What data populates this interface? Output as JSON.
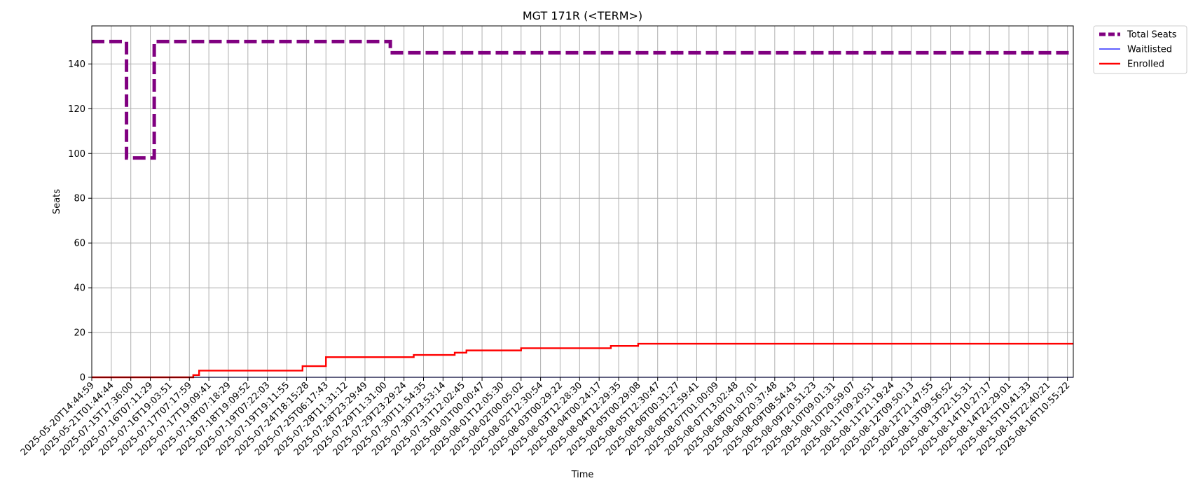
{
  "chart_data": {
    "type": "line",
    "title": "MGT 171R (<TERM>)",
    "xlabel": "Time",
    "ylabel": "Seats",
    "ylim": [
      0,
      157
    ],
    "yticks": [
      0,
      20,
      40,
      60,
      80,
      100,
      120,
      140
    ],
    "grid": true,
    "legend_position": "outside-top-right",
    "categories": [
      "2025-05-20T14:44:59",
      "2025-05-21T01:44:44",
      "2025-07-15T17:36:00",
      "2025-07-16T07:11:29",
      "2025-07-16T19:03:51",
      "2025-07-17T07:17:59",
      "2025-07-17T19:09:41",
      "2025-07-18T07:18:29",
      "2025-07-18T19:09:52",
      "2025-07-19T07:22:03",
      "2025-07-19T19:11:55",
      "2025-07-24T18:15:28",
      "2025-07-25T06:17:43",
      "2025-07-28T11:31:12",
      "2025-07-28T23:29:49",
      "2025-07-29T11:31:00",
      "2025-07-29T23:29:24",
      "2025-07-30T11:54:35",
      "2025-07-30T23:53:14",
      "2025-07-31T12:02:45",
      "2025-08-01T00:00:47",
      "2025-08-01T12:05:30",
      "2025-08-02T00:05:02",
      "2025-08-02T12:30:54",
      "2025-08-03T00:29:22",
      "2025-08-03T12:28:30",
      "2025-08-04T00:24:17",
      "2025-08-04T12:29:35",
      "2025-08-05T00:29:08",
      "2025-08-05T12:30:47",
      "2025-08-06T00:31:27",
      "2025-08-06T12:59:41",
      "2025-08-07T01:00:09",
      "2025-08-07T13:02:48",
      "2025-08-08T01:07:01",
      "2025-08-08T20:37:48",
      "2025-08-09T08:54:43",
      "2025-08-09T20:51:23",
      "2025-08-10T09:01:31",
      "2025-08-10T20:59:07",
      "2025-08-11T09:20:51",
      "2025-08-11T21:19:24",
      "2025-08-12T09:50:13",
      "2025-08-12T21:47:55",
      "2025-08-13T09:56:52",
      "2025-08-13T22:15:31",
      "2025-08-14T10:27:17",
      "2025-08-14T22:29:01",
      "2025-08-15T10:41:33",
      "2025-08-15T22:40:21",
      "2025-08-16T10:55:22"
    ],
    "x_range_index": [
      0,
      50.3
    ],
    "series": [
      {
        "name": "Total Seats",
        "color": "#800080",
        "style": "dashed",
        "steps": [
          [
            0,
            150
          ],
          [
            1.78,
            98
          ],
          [
            3.2,
            150
          ],
          [
            15.3,
            145
          ],
          [
            50.3,
            145
          ]
        ]
      },
      {
        "name": "Waitlisted",
        "color": "#0000ff",
        "style": "solid-thin",
        "steps": [
          [
            0,
            0
          ],
          [
            50.3,
            0
          ]
        ]
      },
      {
        "name": "Enrolled",
        "color": "#ff0000",
        "style": "solid",
        "steps": [
          [
            0,
            0
          ],
          [
            5.2,
            1
          ],
          [
            5.5,
            3
          ],
          [
            10.8,
            5
          ],
          [
            12,
            9
          ],
          [
            16.5,
            10
          ],
          [
            18.6,
            11
          ],
          [
            19.2,
            12
          ],
          [
            22,
            13
          ],
          [
            26.6,
            14
          ],
          [
            28,
            15
          ],
          [
            50.3,
            15
          ]
        ]
      }
    ]
  }
}
